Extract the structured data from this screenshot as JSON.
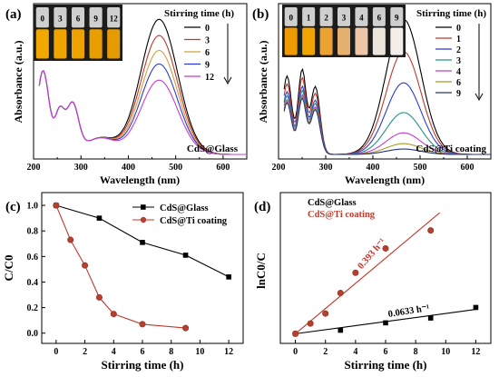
{
  "chart_data": [
    {
      "panel": "(a)",
      "type": "line",
      "xlabel": "Wavelength (nm)",
      "ylabel": "Absorbance (a.u.)",
      "xlim": [
        200,
        650
      ],
      "xticks": [
        "200",
        "300",
        "400",
        "500",
        "600"
      ],
      "annotation": "CdS@Glass",
      "legend_title": "Stirring time (h)",
      "legend_position": "top-right",
      "inset_labels": [
        "0",
        "3",
        "6",
        "9",
        "12"
      ],
      "inset_colors": [
        "#f2a800",
        "#f0a400",
        "#eea200",
        "#e99e00",
        "#e49a00"
      ],
      "series": [
        {
          "name": "0",
          "color": "#000000",
          "peak_nm": 465,
          "peak": 1.0
        },
        {
          "name": "3",
          "color": "#c0392b",
          "peak_nm": 465,
          "peak": 0.88
        },
        {
          "name": "6",
          "color": "#d4a03a",
          "peak_nm": 465,
          "peak": 0.77
        },
        {
          "name": "9",
          "color": "#2b3ccf",
          "peak_nm": 465,
          "peak": 0.67
        },
        {
          "name": "12",
          "color": "#c23fd1",
          "peak_nm": 465,
          "peak": 0.55
        }
      ]
    },
    {
      "panel": "(b)",
      "type": "line",
      "xlabel": "Wavelength (nm)",
      "ylabel": "Absorbance (a.u.)",
      "xlim": [
        200,
        650
      ],
      "xticks": [
        "200",
        "300",
        "400",
        "500",
        "600"
      ],
      "annotation": "CdS@Ti coating",
      "legend_title": "Stirring time (h)",
      "legend_position": "top-right",
      "inset_labels": [
        "0",
        "1",
        "2",
        "3",
        "4",
        "6",
        "9"
      ],
      "inset_colors": [
        "#ee9a00",
        "#f0a400",
        "#eba230",
        "#e6b070",
        "#ecc6a6",
        "#ede4dc",
        "#f3eeea"
      ],
      "series": [
        {
          "name": "0",
          "color": "#000000",
          "peak_nm": 465,
          "peak": 1.0
        },
        {
          "name": "1",
          "color": "#c0392b",
          "peak_nm": 465,
          "peak": 0.76
        },
        {
          "name": "2",
          "color": "#2b3ccf",
          "peak_nm": 465,
          "peak": 0.53
        },
        {
          "name": "3",
          "color": "#2a8f86",
          "peak_nm": 465,
          "peak": 0.31
        },
        {
          "name": "4",
          "color": "#c23fd1",
          "peak_nm": 465,
          "peak": 0.16
        },
        {
          "name": "6",
          "color": "#a89a2a",
          "peak_nm": 465,
          "peak": 0.08
        },
        {
          "name": "9",
          "color": "#26357a",
          "peak_nm": 465,
          "peak": 0.04
        }
      ]
    },
    {
      "panel": "(c)",
      "type": "line",
      "xlabel": "Stirring time (h)",
      "ylabel": "C/C0",
      "xlim": [
        -1,
        13
      ],
      "ylim": [
        -0.08,
        1.1
      ],
      "xticks": [
        0,
        2,
        4,
        6,
        8,
        10,
        12
      ],
      "yticks": [
        0.0,
        0.2,
        0.4,
        0.6,
        0.8,
        1.0
      ],
      "legend_position": "top-right",
      "series": [
        {
          "name": "CdS@Glass",
          "color": "#000000",
          "marker": "square",
          "x": [
            0,
            3,
            6,
            9,
            12
          ],
          "y": [
            1.0,
            0.9,
            0.71,
            0.61,
            0.44
          ]
        },
        {
          "name": "CdS@Ti coating",
          "color": "#c0392b",
          "marker": "circle",
          "x": [
            0,
            1,
            2,
            3,
            4,
            6,
            9
          ],
          "y": [
            1.0,
            0.73,
            0.53,
            0.28,
            0.15,
            0.07,
            0.04
          ]
        }
      ]
    },
    {
      "panel": "(d)",
      "type": "scatter",
      "xlabel": "Stirring time (h)",
      "ylabel": "lnC0/C",
      "xlim": [
        -1,
        13
      ],
      "ylim": [
        -0.3,
        4.4
      ],
      "xticks": [
        0,
        2,
        4,
        6,
        8,
        10,
        12
      ],
      "legend_position": "top-left",
      "series": [
        {
          "name": "CdS@Glass",
          "color": "#000000",
          "marker": "square",
          "x": [
            0,
            3,
            6,
            9,
            12
          ],
          "y": [
            0.0,
            0.11,
            0.34,
            0.49,
            0.82
          ],
          "fit": {
            "slope": 0.0633,
            "intercept": 0.0,
            "label": "0.0633 h⁻¹"
          }
        },
        {
          "name": "CdS@Ti coating",
          "color": "#c0392b",
          "marker": "circle",
          "x": [
            0,
            1,
            2,
            3,
            4,
            6,
            9
          ],
          "y": [
            0.0,
            0.32,
            0.63,
            1.27,
            1.9,
            2.66,
            3.22
          ],
          "fit": {
            "slope": 0.393,
            "intercept": 0.0,
            "label": "0.393 h⁻¹"
          }
        }
      ]
    }
  ]
}
